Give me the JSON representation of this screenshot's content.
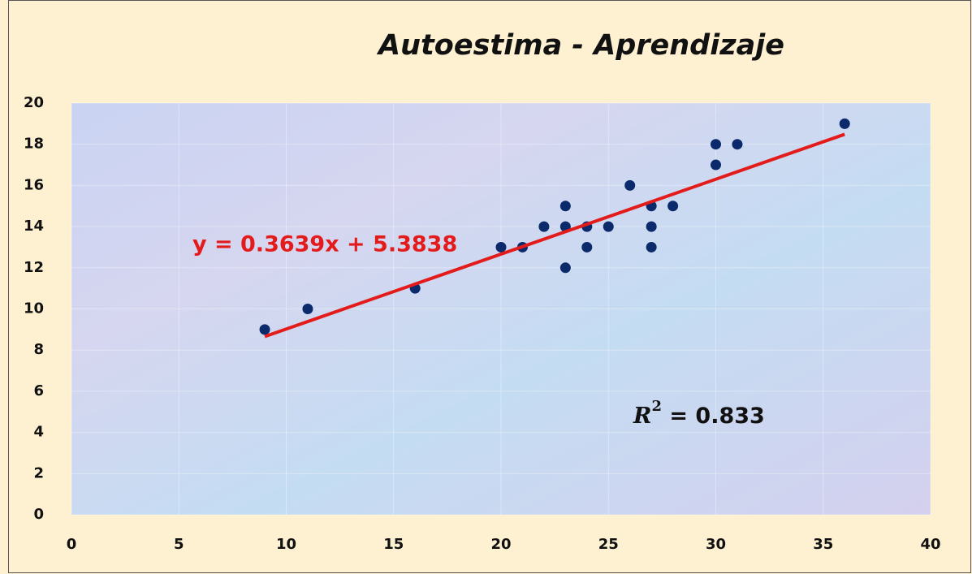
{
  "chart_data": {
    "type": "scatter",
    "title": "Autoestima - Aprendizaje",
    "series": [
      {
        "color": "#0b2a6b",
        "x": [
          9,
          11,
          16,
          20,
          21,
          22,
          23,
          23,
          23,
          24,
          24,
          25,
          26,
          27,
          27,
          27,
          28,
          30,
          30,
          31,
          36
        ],
        "values": [
          9,
          10,
          11,
          13,
          13,
          14,
          15,
          14,
          12,
          14,
          13,
          14,
          16,
          15,
          14,
          13,
          15,
          18,
          17,
          18,
          19
        ]
      }
    ],
    "trendline": {
      "label": "y = 0.3639x + 5.3838",
      "slope": 0.3639,
      "intercept": 5.3838,
      "x": [
        9,
        36
      ],
      "color": "#e31b1b"
    },
    "r_squared": {
      "symbol": "R",
      "power": "2",
      "text": " = 0.833"
    },
    "xlim": [
      0,
      40
    ],
    "xticks": [
      0,
      5,
      10,
      15,
      20,
      25,
      30,
      35,
      40
    ],
    "ylim": [
      0,
      20
    ],
    "yticks": [
      0,
      2,
      4,
      6,
      8,
      10,
      12,
      14,
      16,
      18,
      20
    ],
    "grid": true
  }
}
